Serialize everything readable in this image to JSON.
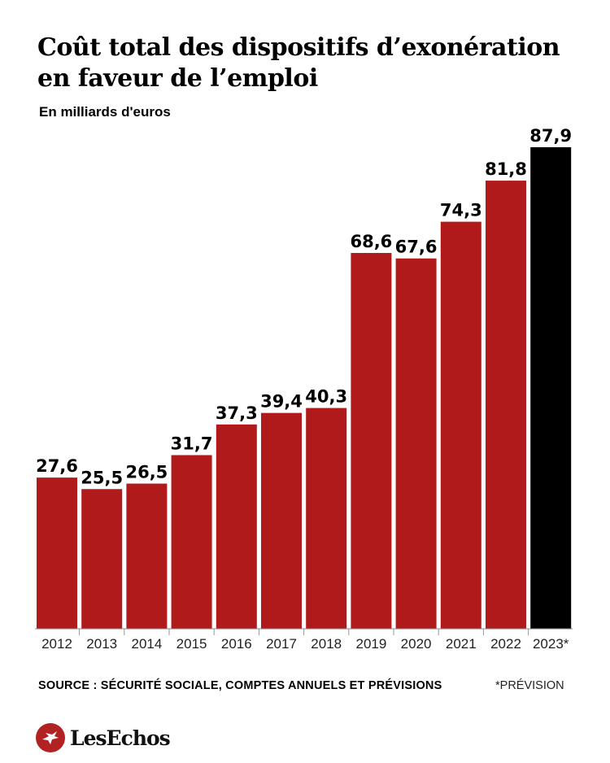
{
  "header": {
    "title": "Coût total des dispositifs d’exonération en faveur de l’emploi",
    "subtitle": "En milliards d'euros"
  },
  "footer": {
    "source": "SOURCE : SÉCURITÉ SOCIALE, COMPTES ANNUELS ET PRÉVISIONS",
    "note": "*PRÉVISION",
    "brand": "LesEchos"
  },
  "colors": {
    "actual": "#b01a1a",
    "forecast": "#000000"
  },
  "chart_data": {
    "type": "bar",
    "title": "Coût total des dispositifs d’exonération en faveur de l’emploi",
    "ylabel": "En milliards d'euros",
    "categories": [
      "2012",
      "2013",
      "2014",
      "2015",
      "2016",
      "2017",
      "2018",
      "2019",
      "2020",
      "2021",
      "2022",
      "2023*"
    ],
    "values": [
      27.6,
      25.5,
      26.5,
      31.7,
      37.3,
      39.4,
      40.3,
      68.6,
      67.6,
      74.3,
      81.8,
      87.9
    ],
    "value_labels": [
      "27,6",
      "25,5",
      "26,5",
      "31,7",
      "37,3",
      "39,4",
      "40,3",
      "68,6",
      "67,6",
      "74,3",
      "81,8",
      "87,9"
    ],
    "forecast": [
      false,
      false,
      false,
      false,
      false,
      false,
      false,
      false,
      false,
      false,
      false,
      true
    ],
    "ylim": [
      0,
      87.9
    ],
    "grid": false,
    "legend": "none"
  }
}
